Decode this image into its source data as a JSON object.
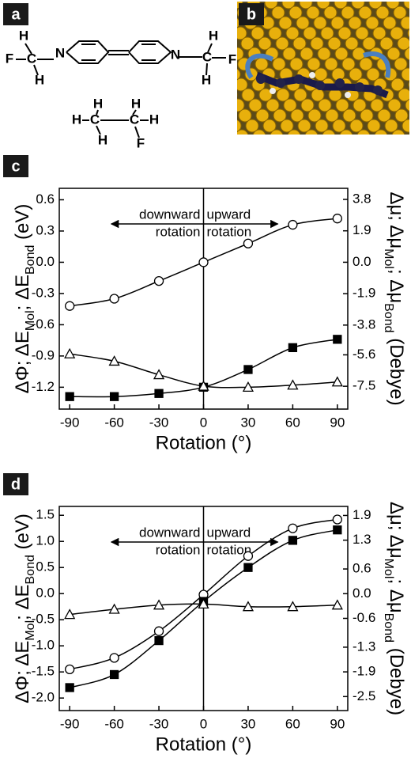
{
  "panel_labels": [
    "a",
    "b",
    "c",
    "d"
  ],
  "molecule": {
    "atoms": [
      "F",
      "C",
      "H",
      "H",
      "N",
      "N",
      "C",
      "H",
      "H",
      "F",
      "H",
      "C",
      "H",
      "H",
      "C",
      "H",
      "H",
      "F"
    ]
  },
  "chart_data": [
    {
      "type": "line",
      "x": [
        -90,
        -60,
        -30,
        0,
        30,
        60,
        90
      ],
      "xlim": [
        -97,
        97
      ],
      "xticks": [
        -90,
        -60,
        -30,
        0,
        30,
        60,
        90
      ],
      "xlabel": "Rotation (°)",
      "ylabel": [
        "ΔΦ; ΔE",
        "Mol",
        "; ΔE",
        "Bond",
        " (eV)"
      ],
      "y2label": [
        "Δμ; Δμ",
        "Mol",
        "; Δμ",
        "Bond",
        " (Debye)"
      ],
      "ylim": [
        -1.41,
        0.71
      ],
      "yticks": [
        -1.2,
        -0.9,
        -0.6,
        -0.3,
        {
          "value": 0,
          "label": "0.0"
        },
        0.3,
        0.6
      ],
      "y2lim": [
        -8.88,
        4.47
      ],
      "y2ticks": [
        -7.5,
        -5.6,
        -3.8,
        -1.9,
        {
          "value": 0,
          "label": "0.0"
        },
        1.9,
        3.8
      ],
      "annotations": [
        [
          "downward",
          "rotation"
        ],
        [
          "upward",
          "rotation"
        ]
      ],
      "series": [
        {
          "color": "#000000",
          "marker": "circle",
          "fill": "#ffffff",
          "values": [
            -0.42,
            -0.35,
            -0.18,
            0,
            0.18,
            0.36,
            0.42
          ]
        },
        {
          "color": "#000000",
          "marker": "square",
          "fill": "#000000",
          "values": [
            -1.29,
            -1.29,
            -1.26,
            -1.2,
            -1.03,
            -0.82,
            -0.74
          ]
        },
        {
          "color": "#000000",
          "marker": "triangle",
          "fill": "#ffffff",
          "values": [
            -0.88,
            -0.95,
            -1.08,
            -1.19,
            -1.2,
            -1.18,
            -1.15
          ]
        }
      ]
    },
    {
      "type": "line",
      "x": [
        -90,
        -60,
        -30,
        0,
        30,
        60,
        90
      ],
      "xlim": [
        -97,
        97
      ],
      "xticks": [
        -90,
        -60,
        -30,
        0,
        30,
        60,
        90
      ],
      "xlabel": "Rotation (°)",
      "ylabel": [
        "ΔΦ; ΔE",
        "Mol",
        "; ΔE",
        "Bond",
        " (eV)"
      ],
      "y2label": [
        "Δμ; Δμ",
        "Mol",
        "; Δμ",
        "Bond",
        " (Debye)"
      ],
      "ylim": [
        -2.24,
        1.67
      ],
      "yticks": [
        {
          "value": -2,
          "label": "-2.0"
        },
        -1.5,
        {
          "value": -1,
          "label": "-1.0"
        },
        -0.5,
        {
          "value": 0,
          "label": "0.0"
        },
        0.5,
        {
          "value": 1,
          "label": "1.0"
        },
        1.5
      ],
      "y2lim": [
        -2.84,
        2.12
      ],
      "y2ticks": [
        -2.5,
        -1.9,
        -1.3,
        -0.6,
        {
          "value": 0,
          "label": "0.0"
        },
        0.6,
        1.3,
        1.9
      ],
      "annotations": [
        [
          "downward",
          "rotation"
        ],
        [
          "upward",
          "rotation"
        ]
      ],
      "series": [
        {
          "color": "#000000",
          "marker": "circle",
          "fill": "#ffffff",
          "values": [
            -1.45,
            -1.23,
            -0.72,
            -0.02,
            0.72,
            1.25,
            1.42
          ]
        },
        {
          "color": "#000000",
          "marker": "square",
          "fill": "#000000",
          "values": [
            -1.8,
            -1.55,
            -0.9,
            -0.15,
            0.5,
            1.02,
            1.22
          ]
        },
        {
          "color": "#000000",
          "marker": "triangle",
          "fill": "#ffffff",
          "values": [
            -0.4,
            -0.3,
            -0.22,
            -0.2,
            -0.25,
            -0.25,
            -0.22
          ]
        }
      ]
    }
  ]
}
